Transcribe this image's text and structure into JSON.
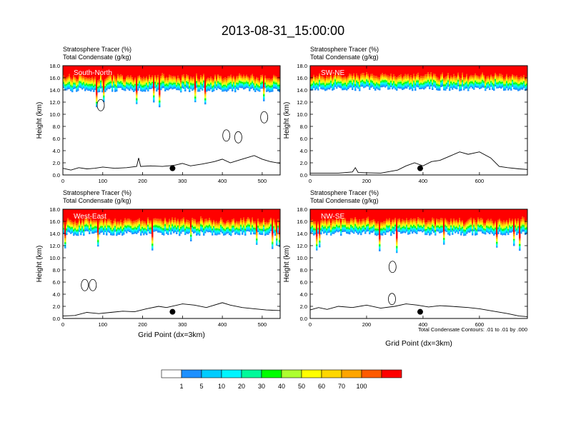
{
  "title": "2013-08-31_15:00:00",
  "panel_header": {
    "line1": "Stratosphere Tracer   (%)",
    "line2": "Total Condensate   (g/kg)"
  },
  "ylabel": "Height (km)",
  "xlabel": "Grid Point (dx=3km)",
  "contour_note": "Total Condensate Contours: .01 to .01 by .000",
  "colorbar": {
    "colors": [
      "#ffffff",
      "#1e90ff",
      "#00ccff",
      "#00f5ff",
      "#00fa9a",
      "#00ff00",
      "#adff2f",
      "#ffff00",
      "#ffd700",
      "#ffa500",
      "#ff5a00",
      "#ff0000"
    ],
    "labels": [
      "1",
      "5",
      "10",
      "20",
      "30",
      "40",
      "50",
      "60",
      "70",
      "100"
    ]
  },
  "chart_data": [
    {
      "type": "heatmap",
      "name": "South-North",
      "x_ticks": [
        "0",
        "100",
        "200",
        "300",
        "400",
        "500"
      ],
      "y_ticks": [
        "0.0",
        "2.0",
        "4.0",
        "6.0",
        "8.0",
        "10.0",
        "12.0",
        "14.0",
        "16.0",
        "18.0"
      ],
      "xlim": [
        0,
        545
      ],
      "ylim": [
        0,
        18
      ],
      "tracer_base_km": 14.0,
      "terrain": [
        [
          0,
          1.1
        ],
        [
          20,
          0.8
        ],
        [
          40,
          1.2
        ],
        [
          60,
          1.0
        ],
        [
          80,
          1.1
        ],
        [
          100,
          1.3
        ],
        [
          130,
          1.1
        ],
        [
          160,
          1.2
        ],
        [
          185,
          1.4
        ],
        [
          190,
          2.8
        ],
        [
          195,
          1.4
        ],
        [
          220,
          1.5
        ],
        [
          250,
          1.4
        ],
        [
          280,
          1.6
        ],
        [
          300,
          1.9
        ],
        [
          320,
          1.5
        ],
        [
          350,
          1.8
        ],
        [
          380,
          2.2
        ],
        [
          400,
          2.6
        ],
        [
          420,
          2.0
        ],
        [
          440,
          2.4
        ],
        [
          460,
          2.8
        ],
        [
          480,
          3.2
        ],
        [
          500,
          2.6
        ],
        [
          520,
          2.2
        ],
        [
          545,
          1.9
        ]
      ],
      "marker": [
        275,
        1.1
      ],
      "contours": [
        [
          95,
          11.5
        ],
        [
          410,
          6.5
        ],
        [
          440,
          6.2
        ],
        [
          505,
          9.5
        ]
      ]
    },
    {
      "type": "heatmap",
      "name": "SW-NE",
      "x_ticks": [
        "0",
        "200",
        "400",
        "600"
      ],
      "y_ticks": [
        "0.0",
        "2.0",
        "4.0",
        "6.0",
        "8.0",
        "10.0",
        "12.0",
        "14.0",
        "16.0",
        "18.0"
      ],
      "xlim": [
        0,
        770
      ],
      "ylim": [
        0,
        18
      ],
      "tracer_base_km": 14.2,
      "terrain": [
        [
          0,
          0.3
        ],
        [
          100,
          0.3
        ],
        [
          150,
          0.5
        ],
        [
          160,
          1.2
        ],
        [
          170,
          0.4
        ],
        [
          250,
          0.3
        ],
        [
          310,
          0.8
        ],
        [
          340,
          1.5
        ],
        [
          370,
          2.0
        ],
        [
          400,
          1.5
        ],
        [
          430,
          2.2
        ],
        [
          460,
          2.4
        ],
        [
          500,
          3.2
        ],
        [
          530,
          3.8
        ],
        [
          560,
          3.4
        ],
        [
          600,
          3.8
        ],
        [
          640,
          2.8
        ],
        [
          670,
          1.4
        ],
        [
          700,
          1.2
        ],
        [
          740,
          1.0
        ],
        [
          770,
          0.9
        ]
      ],
      "marker": [
        390,
        1.1
      ],
      "contours": []
    },
    {
      "type": "heatmap",
      "name": "West-East",
      "x_ticks": [
        "0",
        "100",
        "200",
        "300",
        "400",
        "500"
      ],
      "y_ticks": [
        "0.0",
        "2.0",
        "4.0",
        "6.0",
        "8.0",
        "10.0",
        "12.0",
        "14.0",
        "16.0",
        "18.0"
      ],
      "xlim": [
        0,
        545
      ],
      "ylim": [
        0,
        18
      ],
      "tracer_base_km": 14.0,
      "terrain": [
        [
          0,
          0.4
        ],
        [
          30,
          0.5
        ],
        [
          60,
          1.0
        ],
        [
          90,
          0.8
        ],
        [
          120,
          1.0
        ],
        [
          150,
          1.2
        ],
        [
          180,
          1.1
        ],
        [
          210,
          1.6
        ],
        [
          240,
          2.0
        ],
        [
          260,
          1.8
        ],
        [
          300,
          2.4
        ],
        [
          330,
          2.2
        ],
        [
          360,
          1.8
        ],
        [
          400,
          2.6
        ],
        [
          420,
          2.2
        ],
        [
          450,
          1.8
        ],
        [
          480,
          1.6
        ],
        [
          510,
          1.4
        ],
        [
          545,
          1.3
        ]
      ],
      "marker": [
        275,
        1.1
      ],
      "contours": [
        [
          55,
          5.5
        ],
        [
          75,
          5.5
        ]
      ]
    },
    {
      "type": "heatmap",
      "name": "NW-SE",
      "x_ticks": [
        "0",
        "200",
        "400",
        "600"
      ],
      "y_ticks": [
        "0.0",
        "2.0",
        "4.0",
        "6.0",
        "8.0",
        "10.0",
        "12.0",
        "14.0",
        "16.0",
        "18.0"
      ],
      "xlim": [
        0,
        770
      ],
      "ylim": [
        0,
        18
      ],
      "tracer_base_km": 14.0,
      "terrain": [
        [
          0,
          1.4
        ],
        [
          30,
          1.8
        ],
        [
          60,
          1.5
        ],
        [
          100,
          2.0
        ],
        [
          150,
          1.8
        ],
        [
          200,
          2.2
        ],
        [
          250,
          1.7
        ],
        [
          300,
          2.0
        ],
        [
          340,
          2.4
        ],
        [
          380,
          2.2
        ],
        [
          420,
          1.9
        ],
        [
          460,
          2.1
        ],
        [
          500,
          2.0
        ],
        [
          560,
          1.8
        ],
        [
          600,
          1.6
        ],
        [
          650,
          1.2
        ],
        [
          700,
          0.8
        ],
        [
          740,
          0.4
        ],
        [
          770,
          0.3
        ]
      ],
      "marker": [
        390,
        1.1
      ],
      "contours": [
        [
          292,
          8.5
        ],
        [
          290,
          3.2
        ]
      ]
    }
  ]
}
